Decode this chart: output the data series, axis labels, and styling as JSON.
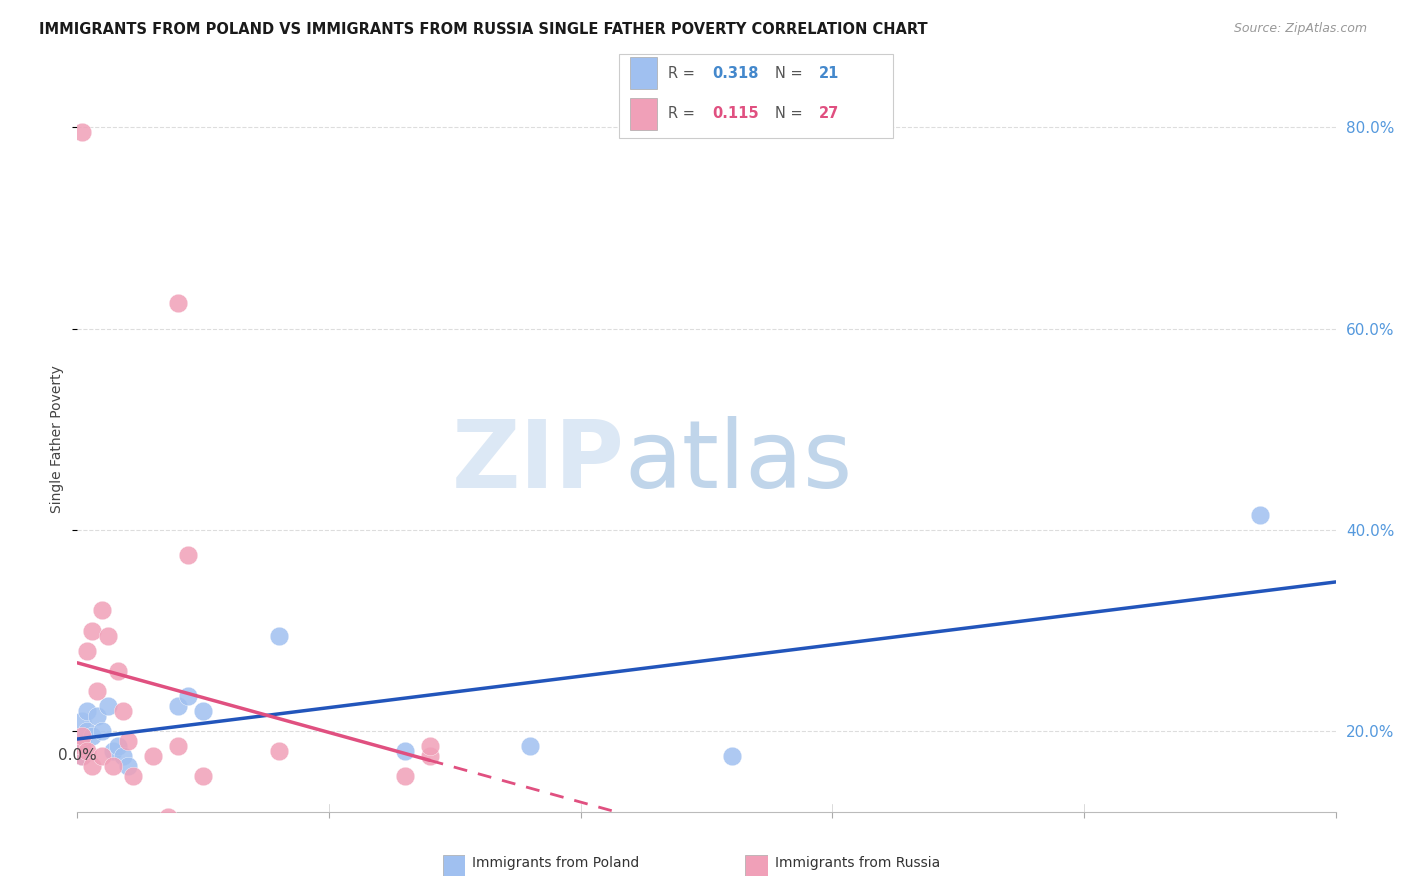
{
  "title": "IMMIGRANTS FROM POLAND VS IMMIGRANTS FROM RUSSIA SINGLE FATHER POVERTY CORRELATION CHART",
  "source": "Source: ZipAtlas.com",
  "ylabel": "Single Father Poverty",
  "color_poland": "#a0c0f0",
  "color_russia": "#f0a0b8",
  "color_poland_line": "#2255bb",
  "color_russia_line": "#e05080",
  "poland_R": "0.318",
  "poland_N": "21",
  "russia_R": "0.115",
  "russia_N": "27",
  "poland_x": [
    0.001,
    0.001,
    0.001,
    0.002,
    0.002,
    0.003,
    0.004,
    0.005,
    0.006,
    0.007,
    0.008,
    0.009,
    0.01,
    0.02,
    0.022,
    0.025,
    0.04,
    0.065,
    0.09,
    0.13,
    0.235
  ],
  "poland_y": [
    0.175,
    0.19,
    0.21,
    0.2,
    0.22,
    0.195,
    0.215,
    0.2,
    0.225,
    0.18,
    0.185,
    0.175,
    0.165,
    0.225,
    0.235,
    0.22,
    0.295,
    0.18,
    0.185,
    0.175,
    0.415
  ],
  "russia_x": [
    0.001,
    0.001,
    0.001,
    0.001,
    0.002,
    0.002,
    0.003,
    0.003,
    0.004,
    0.005,
    0.005,
    0.006,
    0.007,
    0.008,
    0.009,
    0.01,
    0.011,
    0.015,
    0.018,
    0.02,
    0.02,
    0.022,
    0.025,
    0.04,
    0.065,
    0.07,
    0.07
  ],
  "russia_y": [
    0.175,
    0.185,
    0.195,
    0.795,
    0.18,
    0.28,
    0.165,
    0.3,
    0.24,
    0.175,
    0.32,
    0.295,
    0.165,
    0.26,
    0.22,
    0.19,
    0.155,
    0.175,
    0.115,
    0.185,
    0.625,
    0.375,
    0.155,
    0.18,
    0.155,
    0.175,
    0.185
  ],
  "xmin": 0.0,
  "xmax": 0.25,
  "ymin": 0.12,
  "ymax": 0.86,
  "yticks": [
    0.2,
    0.4,
    0.6,
    0.8
  ],
  "watermark_zip_color": "#dce8f5",
  "watermark_atlas_color": "#c0d5ea"
}
